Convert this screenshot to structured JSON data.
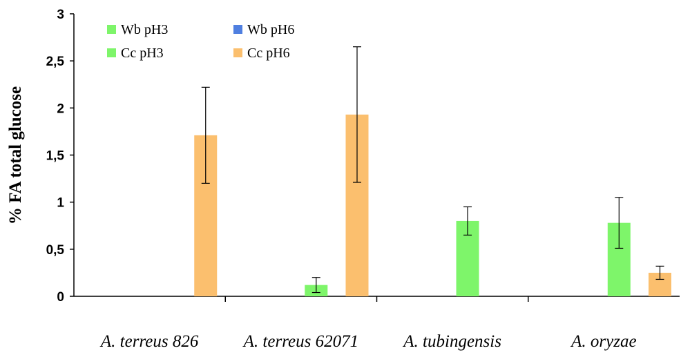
{
  "chart_data": {
    "type": "bar",
    "title": "",
    "xlabel": "",
    "ylabel": "% FA total glucose",
    "ylim": [
      0,
      3
    ],
    "yticks": [
      "0",
      "0,5",
      "1",
      "1,5",
      "2",
      "2,5",
      "3"
    ],
    "ytick_values": [
      0,
      0.5,
      1,
      1.5,
      2,
      2.5,
      3
    ],
    "categories": [
      "A. terreus 826",
      "A. terreus 62071",
      "A. tubingensis",
      "A. oryzae"
    ],
    "grid": false,
    "legend_position": "top-left",
    "series": [
      {
        "name": "Wb pH3",
        "color": "#7ef56a",
        "values": [
          0,
          0,
          0,
          0
        ],
        "errors": [
          0,
          0,
          0,
          0
        ]
      },
      {
        "name": "Wb pH6",
        "color": "#4f7fe0",
        "values": [
          0,
          0,
          0,
          0
        ],
        "errors": [
          0,
          0,
          0,
          0
        ]
      },
      {
        "name": "Cc pH3",
        "color": "#7ef56a",
        "values": [
          0,
          0.12,
          0.8,
          0.78
        ],
        "errors": [
          0,
          0.08,
          0.15,
          0.27
        ]
      },
      {
        "name": "Cc pH6",
        "color": "#fbbf6e",
        "values": [
          1.71,
          1.93,
          0,
          0.25
        ],
        "errors": [
          0.51,
          0.72,
          0,
          0.07
        ]
      }
    ]
  }
}
